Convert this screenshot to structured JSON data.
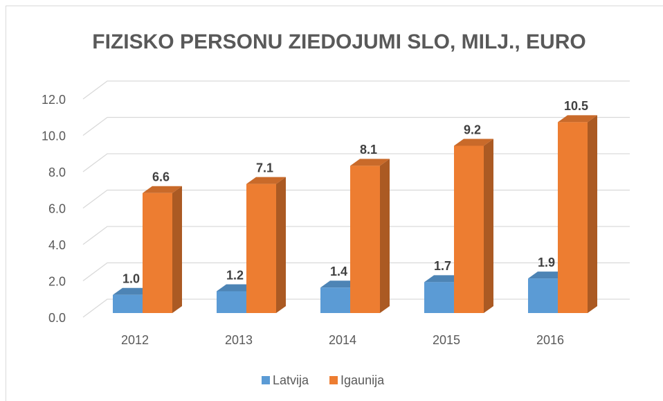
{
  "chart_data": {
    "type": "bar3d",
    "title": "FIZISKO PERSONU ZIEDOJUMI SLO, MILJ., EURO",
    "categories": [
      "2012",
      "2013",
      "2014",
      "2015",
      "2016"
    ],
    "series": [
      {
        "name": "Latvija",
        "color": "#5b9bd5",
        "values": [
          1.0,
          1.2,
          1.4,
          1.7,
          1.9
        ],
        "value_labels": [
          "1.0",
          "1.2",
          "1.4",
          "1.7",
          "1.9"
        ]
      },
      {
        "name": "Igaunija",
        "color": "#ed7d31",
        "values": [
          6.6,
          7.1,
          8.1,
          9.2,
          10.5
        ],
        "value_labels": [
          "6.6",
          "7.1",
          "8.1",
          "9.2",
          "10.5"
        ]
      }
    ],
    "ylim": [
      0,
      12
    ],
    "yticks": [
      {
        "value": 0,
        "label": "0.0"
      },
      {
        "value": 2,
        "label": "2.0"
      },
      {
        "value": 4,
        "label": "4.0"
      },
      {
        "value": 6,
        "label": "6.0"
      },
      {
        "value": 8,
        "label": "8.0"
      },
      {
        "value": 10,
        "label": "10.0"
      },
      {
        "value": 12,
        "label": "12.0"
      }
    ],
    "grid": true,
    "legend": "bottom"
  }
}
